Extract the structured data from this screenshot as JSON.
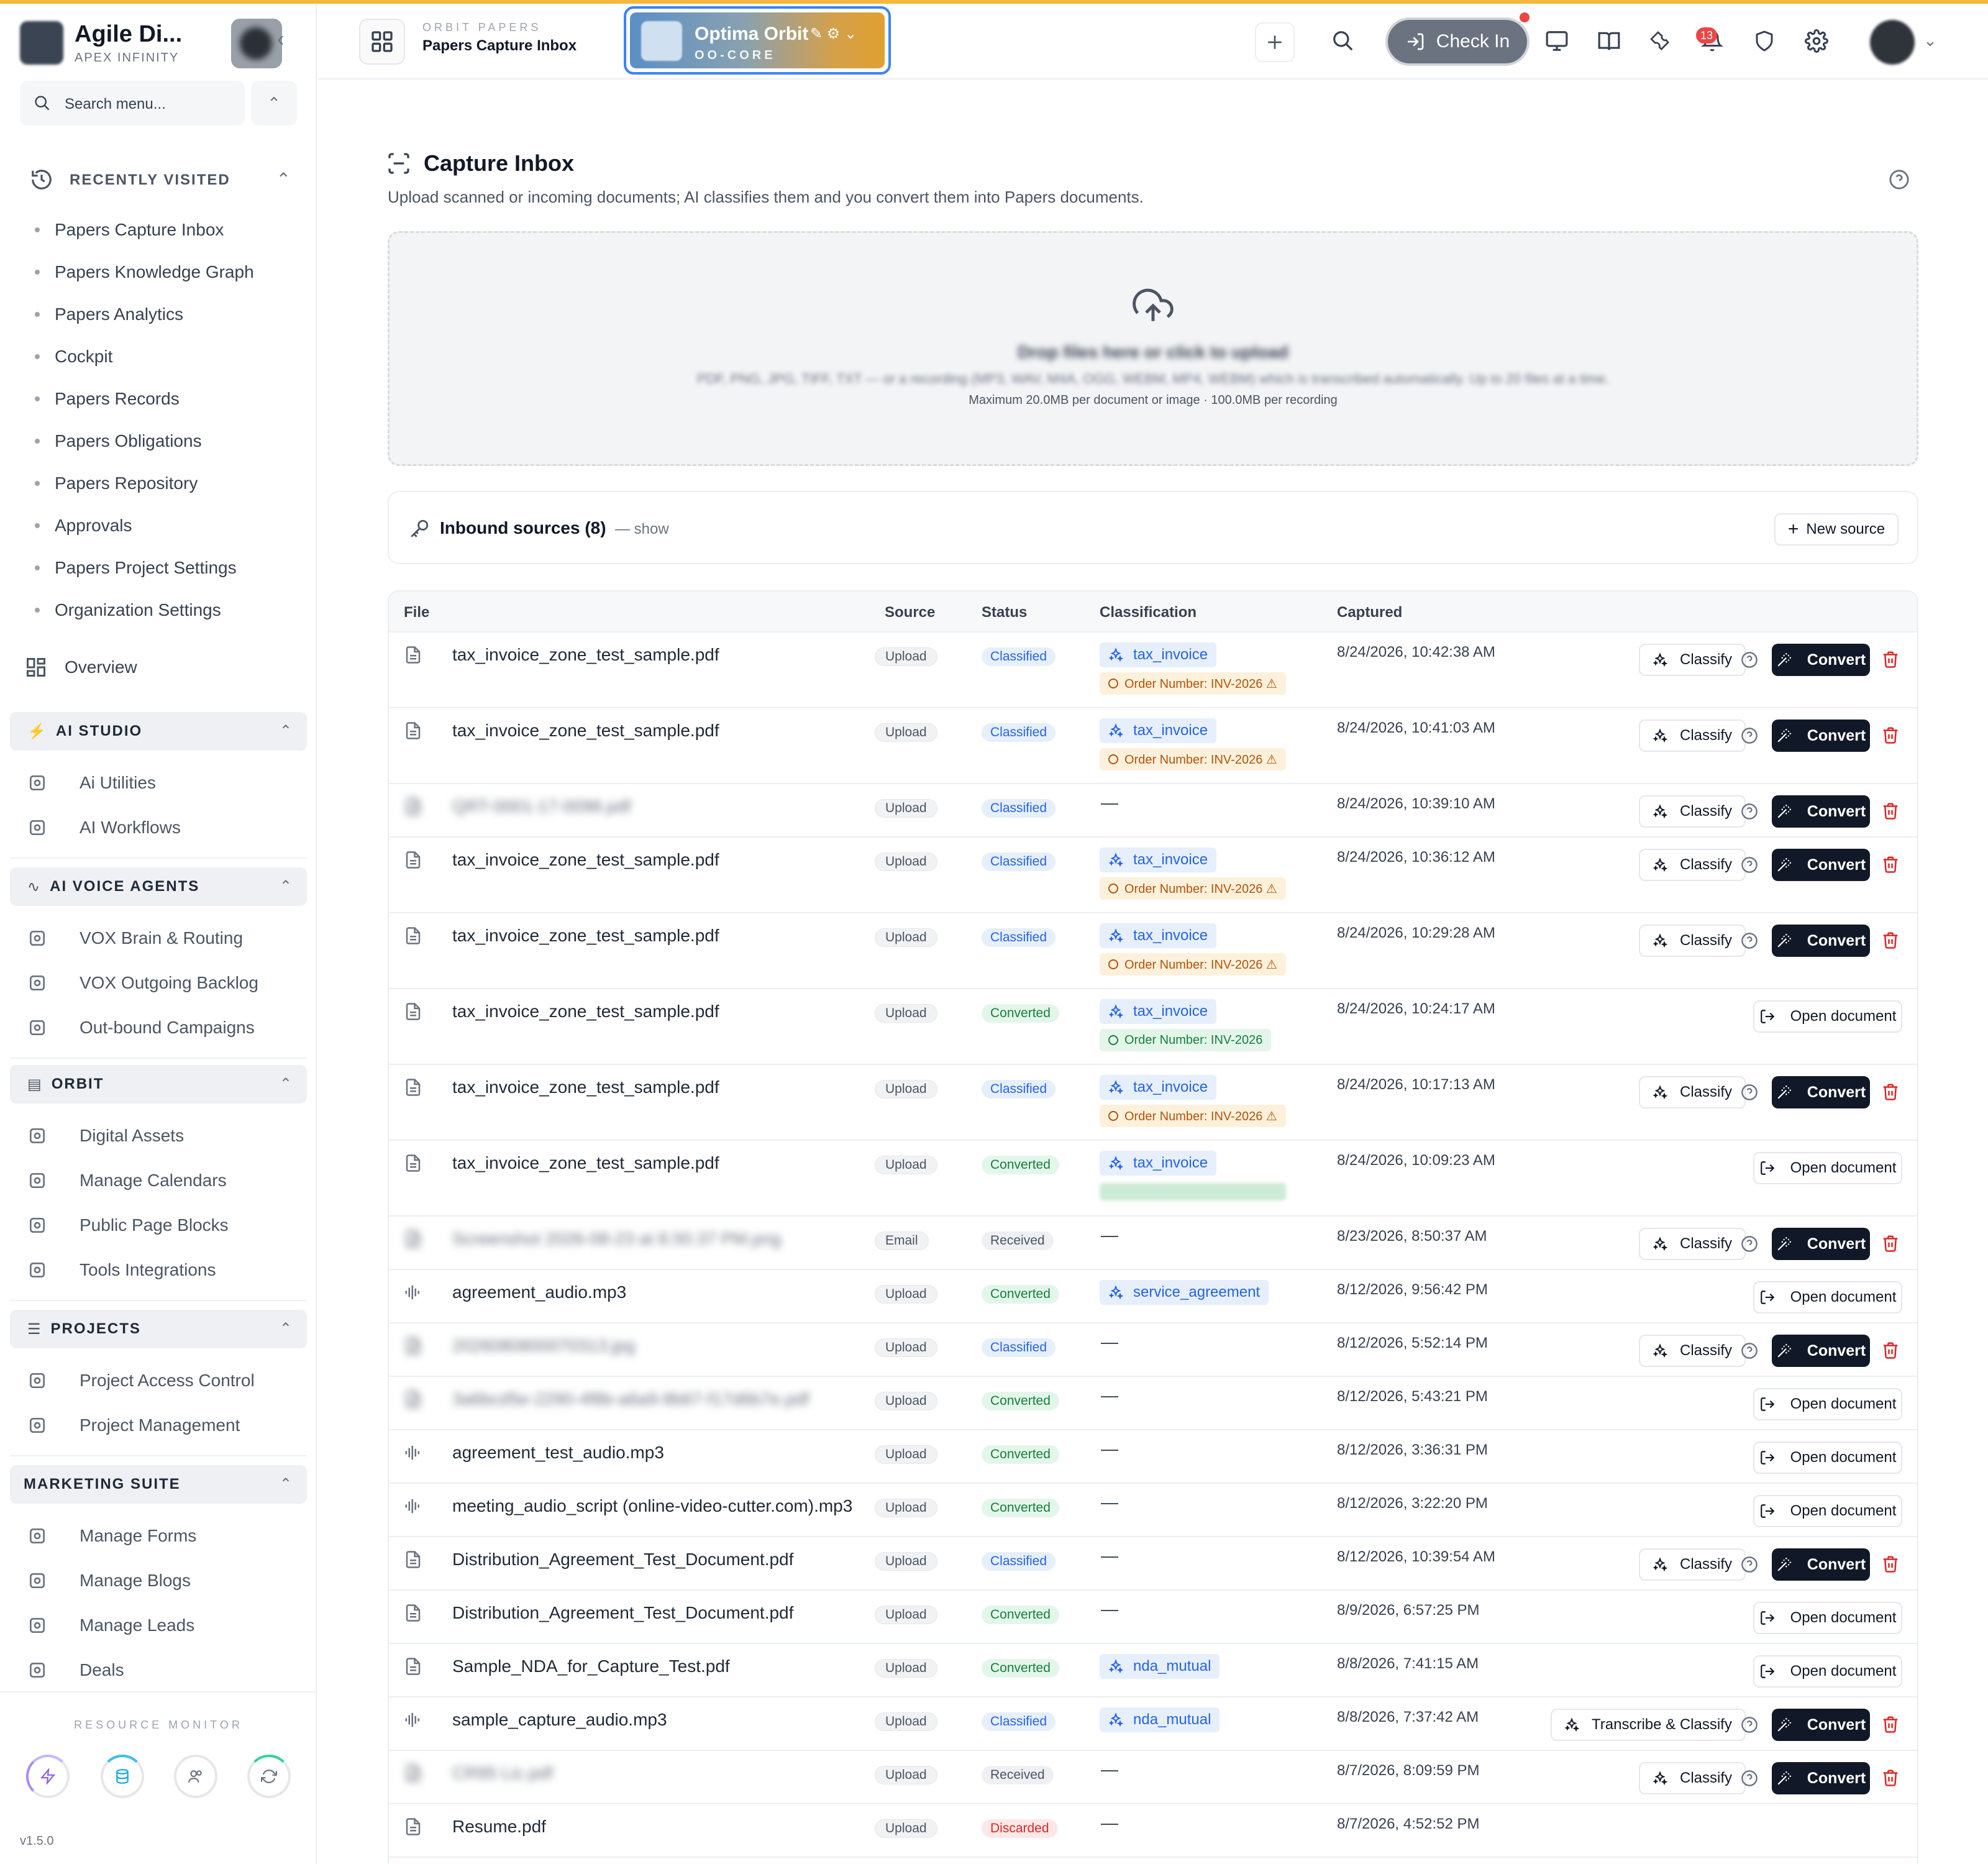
{
  "brand": {
    "name": "Agile Di...",
    "sub": "APEX INFINITY"
  },
  "sidebar": {
    "search_placeholder": "Search menu...",
    "recent_title": "RECENTLY VISITED",
    "recent": [
      "Papers Capture Inbox",
      "Papers Knowledge Graph",
      "Papers Analytics",
      "Cockpit",
      "Papers Records",
      "Papers Obligations",
      "Papers Repository",
      "Approvals",
      "Papers Project Settings",
      "Organization Settings"
    ],
    "overview": "Overview",
    "sections": [
      {
        "title": "AI STUDIO",
        "items": [
          "Ai Utilities",
          "AI Workflows"
        ]
      },
      {
        "title": "AI VOICE AGENTS",
        "items": [
          "VOX Brain & Routing",
          "VOX Outgoing Backlog",
          "Out-bound Campaigns"
        ]
      },
      {
        "title": "ORBIT",
        "items": [
          "Digital Assets",
          "Manage Calendars",
          "Public Page Blocks",
          "Tools Integrations"
        ]
      },
      {
        "title": "PROJECTS",
        "items": [
          "Project Access Control",
          "Project Management"
        ]
      },
      {
        "title": "MARKETING SUITE",
        "items": [
          "Manage Forms",
          "Manage Blogs",
          "Manage Leads",
          "Deals"
        ]
      }
    ],
    "monitor_title": "RESOURCE MONITOR",
    "version": "v1.5.0"
  },
  "topbar": {
    "crumb_small": "ORBIT PAPERS",
    "crumb_title": "Papers Capture Inbox",
    "workspace_name": "Optima Orbit",
    "workspace_code": "OO-CORE",
    "checkin_label": "Check In",
    "notifications": "13"
  },
  "page": {
    "title": "Capture Inbox",
    "subtitle": "Upload scanned or incoming documents; AI classifies them and you convert them into Papers documents.",
    "drop_title": "Drop files here or click to upload",
    "drop_types": "PDF, PNG, JPG, TIFF, TXT — or a recording (MP3, WAV, M4A, OGG, WEBM, MP4, WEBM) which is transcribed automatically. Up to 20 files at a time.",
    "drop_max": "Maximum 20.0MB per document or image · 100.0MB per recording",
    "sources_label": "Inbound sources (8)",
    "sources_show": "— show",
    "new_source": "New source"
  },
  "table": {
    "headers": {
      "file": "File",
      "source": "Source",
      "status": "Status",
      "classification": "Classification",
      "captured": "Captured"
    },
    "classify_label": "Classify",
    "transcribe_label": "Transcribe & Classify",
    "convert_label": "Convert",
    "open_label": "Open document",
    "rows": [
      {
        "file": "tax_invoice_zone_test_sample.pdf",
        "kind": "doc",
        "source": "Upload",
        "status": "Classified",
        "cls": "tax_invoice",
        "order": "Order Number: INV-2026 ⚠",
        "order_state": "warn",
        "captured": "8/24/2026, 10:42:38 AM",
        "action": "convert"
      },
      {
        "file": "tax_invoice_zone_test_sample.pdf",
        "kind": "doc",
        "source": "Upload",
        "status": "Classified",
        "cls": "tax_invoice",
        "order": "Order Number: INV-2026 ⚠",
        "order_state": "warn",
        "captured": "8/24/2026, 10:41:03 AM",
        "action": "convert"
      },
      {
        "file": "QRT-0001-17-0098.pdf",
        "kind": "doc",
        "blur": true,
        "source": "Upload",
        "status": "Classified",
        "cls": "",
        "captured": "8/24/2026, 10:39:10 AM",
        "action": "convert"
      },
      {
        "file": "tax_invoice_zone_test_sample.pdf",
        "kind": "doc",
        "source": "Upload",
        "status": "Classified",
        "cls": "tax_invoice",
        "order": "Order Number: INV-2026 ⚠",
        "order_state": "warn",
        "captured": "8/24/2026, 10:36:12 AM",
        "action": "convert"
      },
      {
        "file": "tax_invoice_zone_test_sample.pdf",
        "kind": "doc",
        "source": "Upload",
        "status": "Classified",
        "cls": "tax_invoice",
        "order": "Order Number: INV-2026 ⚠",
        "order_state": "warn",
        "captured": "8/24/2026, 10:29:28 AM",
        "action": "convert"
      },
      {
        "file": "tax_invoice_zone_test_sample.pdf",
        "kind": "doc",
        "source": "Upload",
        "status": "Converted",
        "cls": "tax_invoice",
        "order": "Order Number: INV-2026",
        "order_state": "ok",
        "captured": "8/24/2026, 10:24:17 AM",
        "action": "open"
      },
      {
        "file": "tax_invoice_zone_test_sample.pdf",
        "kind": "doc",
        "source": "Upload",
        "status": "Classified",
        "cls": "tax_invoice",
        "order": "Order Number: INV-2026 ⚠",
        "order_state": "warn",
        "captured": "8/24/2026, 10:17:13 AM",
        "action": "convert"
      },
      {
        "file": "tax_invoice_zone_test_sample.pdf",
        "kind": "doc",
        "source": "Upload",
        "status": "Converted",
        "cls": "tax_invoice",
        "order": "",
        "order_state": "blur",
        "captured": "8/24/2026, 10:09:23 AM",
        "action": "open"
      },
      {
        "file": "Screenshot 2026-08-23 at 8.50.37 PM.png",
        "kind": "doc",
        "blur": true,
        "source": "Email",
        "status": "Received",
        "cls": "",
        "captured": "8/23/2026, 8:50:37 AM",
        "action": "convert"
      },
      {
        "file": "agreement_audio.mp3",
        "kind": "audio",
        "source": "Upload",
        "status": "Converted",
        "cls": "service_agreement",
        "captured": "8/12/2026, 9:56:42 PM",
        "action": "open"
      },
      {
        "file": "2026080800070313.jpg",
        "kind": "doc",
        "blur": true,
        "source": "Upload",
        "status": "Classified",
        "cls": "",
        "captured": "8/12/2026, 5:52:14 PM",
        "action": "convert"
      },
      {
        "file": "3a6bcd5e-2290-4f8b-a6a9-8b67-f17d6b7e.pdf",
        "kind": "doc",
        "blur": true,
        "source": "Upload",
        "status": "Converted",
        "cls": "",
        "captured": "8/12/2026, 5:43:21 PM",
        "action": "open"
      },
      {
        "file": "agreement_test_audio.mp3",
        "kind": "audio",
        "source": "Upload",
        "status": "Converted",
        "cls": "",
        "captured": "8/12/2026, 3:36:31 PM",
        "action": "open"
      },
      {
        "file": "meeting_audio_script (online-video-cutter.com).mp3",
        "kind": "audio",
        "source": "Upload",
        "status": "Converted",
        "cls": "",
        "captured": "8/12/2026, 3:22:20 PM",
        "action": "open"
      },
      {
        "file": "Distribution_Agreement_Test_Document.pdf",
        "kind": "doc",
        "source": "Upload",
        "status": "Classified",
        "cls": "",
        "captured": "8/12/2026, 10:39:54 AM",
        "action": "convert"
      },
      {
        "file": "Distribution_Agreement_Test_Document.pdf",
        "kind": "doc",
        "source": "Upload",
        "status": "Converted",
        "cls": "",
        "captured": "8/9/2026, 6:57:25 PM",
        "action": "open"
      },
      {
        "file": "Sample_NDA_for_Capture_Test.pdf",
        "kind": "doc",
        "source": "Upload",
        "status": "Converted",
        "cls": "nda_mutual",
        "captured": "8/8/2026, 7:41:15 AM",
        "action": "open"
      },
      {
        "file": "sample_capture_audio.mp3",
        "kind": "audio",
        "source": "Upload",
        "status": "Classified",
        "cls": "nda_mutual",
        "captured": "8/8/2026, 7:37:42 AM",
        "action": "transcribe"
      },
      {
        "file": "CR95 Lic.pdf",
        "kind": "doc",
        "blur": true,
        "source": "Upload",
        "status": "Received",
        "cls": "",
        "captured": "8/7/2026, 8:09:59 PM",
        "action": "convert"
      },
      {
        "file": "Resume.pdf",
        "kind": "doc",
        "source": "Upload",
        "status": "Discarded",
        "cls": "",
        "captured": "8/7/2026, 4:52:52 PM",
        "action": "none"
      }
    ]
  },
  "colors": {
    "accent_top": "#f6b73c",
    "convert_bg": "#111827",
    "classified": "#2563eb",
    "converted": "#15803d",
    "discarded": "#dc2626"
  }
}
